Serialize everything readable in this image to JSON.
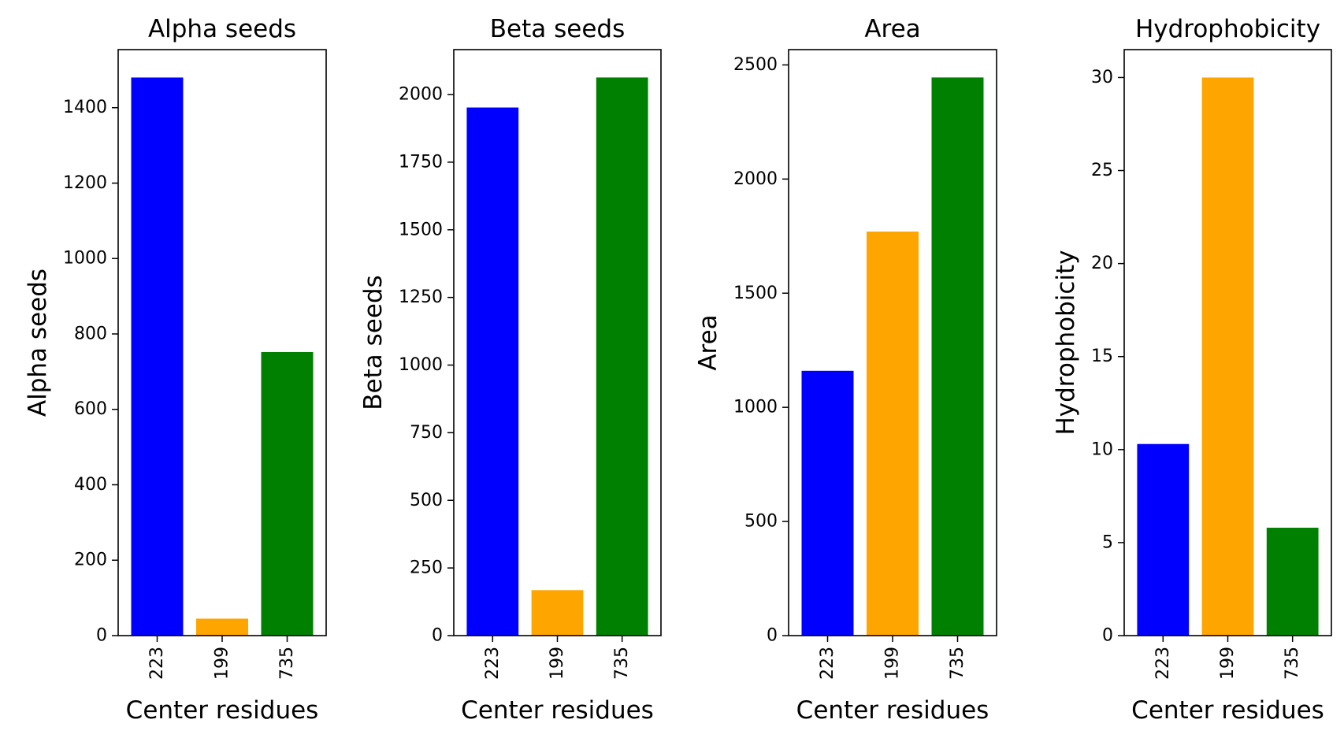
{
  "chart_data": [
    {
      "type": "bar",
      "title": "Alpha seeds",
      "xlabel": "Center residues",
      "ylabel": "Alpha seeds",
      "categories": [
        "223",
        "199",
        "735"
      ],
      "values": [
        1480,
        45,
        752
      ],
      "colors": [
        "#0000ff",
        "#ffa500",
        "#008000"
      ],
      "ylim": [
        0,
        1554
      ],
      "yticks": [
        0,
        200,
        400,
        600,
        800,
        1000,
        1200,
        1400
      ],
      "grid": false
    },
    {
      "type": "bar",
      "title": "Beta seeds",
      "xlabel": "Center residues",
      "ylabel": "Beta seeds",
      "categories": [
        "223",
        "199",
        "735"
      ],
      "values": [
        1952,
        168,
        2063
      ],
      "colors": [
        "#0000ff",
        "#ffa500",
        "#008000"
      ],
      "ylim": [
        0,
        2166
      ],
      "yticks": [
        0,
        250,
        500,
        750,
        1000,
        1250,
        1500,
        1750,
        2000
      ],
      "grid": false
    },
    {
      "type": "bar",
      "title": "Area",
      "xlabel": "Center residues",
      "ylabel": "Area",
      "categories": [
        "223",
        "199",
        "735"
      ],
      "values": [
        1160,
        1770,
        2445
      ],
      "colors": [
        "#0000ff",
        "#ffa500",
        "#008000"
      ],
      "ylim": [
        0,
        2567
      ],
      "yticks": [
        0,
        500,
        1000,
        1500,
        2000,
        2500
      ],
      "grid": false
    },
    {
      "type": "bar",
      "title": "Hydrophobicity",
      "xlabel": "Center residues",
      "ylabel": "Hydrophobicity",
      "categories": [
        "223",
        "199",
        "735"
      ],
      "values": [
        10.3,
        30.0,
        5.8
      ],
      "colors": [
        "#0000ff",
        "#ffa500",
        "#008000"
      ],
      "ylim": [
        0,
        31.5
      ],
      "yticks": [
        0,
        5,
        10,
        15,
        20,
        25,
        30
      ],
      "grid": false
    }
  ]
}
